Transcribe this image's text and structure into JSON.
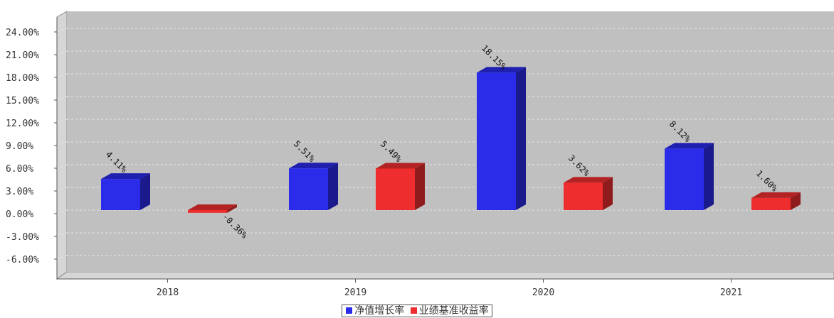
{
  "chart_data": {
    "type": "bar",
    "categories": [
      "2018",
      "2019",
      "2020",
      "2021"
    ],
    "series": [
      {
        "name": "净值增长率",
        "values": [
          4.11,
          5.51,
          18.15,
          8.12
        ],
        "labels": [
          "4.11%",
          "5.51%",
          "18.15%",
          "8.12%"
        ],
        "color": "#2b2bea"
      },
      {
        "name": "业绩基准收益率",
        "values": [
          -0.36,
          5.49,
          3.62,
          1.6
        ],
        "labels": [
          "-0.36%",
          "5.49%",
          "3.62%",
          "1.60%"
        ],
        "color": "#ee2e2e"
      }
    ],
    "ylim": [
      -9,
      25.5
    ],
    "yticks": [
      24,
      21,
      18,
      15,
      12,
      9,
      6,
      3,
      0,
      -3,
      -6
    ],
    "ytick_labels": [
      "24.00%",
      "21.00%",
      "18.00%",
      "15.00%",
      "12.00%",
      "9.00%",
      "6.00%",
      "3.00%",
      "0.00%",
      "-3.00%",
      "-6.00%"
    ],
    "grid": true,
    "legend": "bottom",
    "plot_background": "#c0c0c0"
  }
}
